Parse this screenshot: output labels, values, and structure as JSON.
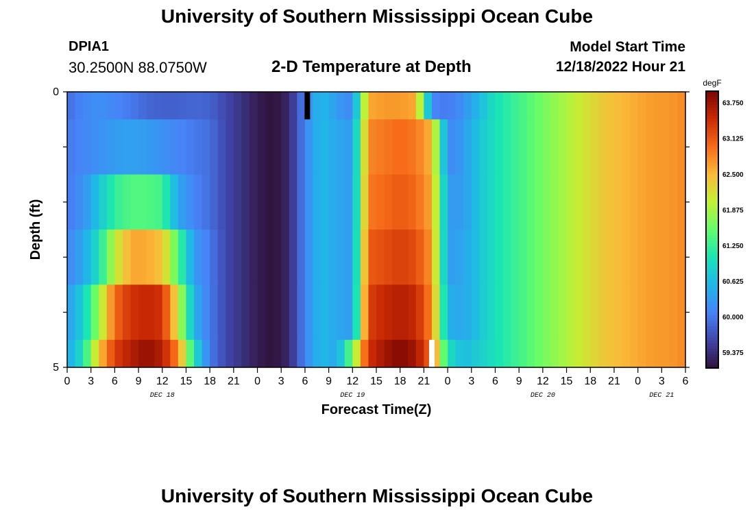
{
  "header": {
    "title": "University of Southern Mississippi Ocean Cube",
    "station": "DPIA1",
    "coordinates": "30.2500N  88.0750W",
    "plot_title": "2-D Temperature at Depth",
    "model_start_label": "Model Start Time",
    "model_start_value": "12/18/2022 Hour 21"
  },
  "footer": {
    "title": "University of Southern Mississippi Ocean Cube"
  },
  "chart_data": {
    "type": "heatmap",
    "xlabel": "Forecast Time(Z)",
    "ylabel": "Depth (ft)",
    "x_ticks": [
      "0",
      "3",
      "6",
      "9",
      "12",
      "15",
      "18",
      "21",
      "0",
      "3",
      "6",
      "9",
      "12",
      "15",
      "18",
      "21",
      "0",
      "3",
      "6",
      "9",
      "12",
      "15",
      "18",
      "21",
      "0",
      "3",
      "6"
    ],
    "x_range_hours": [
      0,
      78
    ],
    "date_labels": [
      {
        "text": "DEC 18",
        "hour": 12
      },
      {
        "text": "DEC 19",
        "hour": 36
      },
      {
        "text": "DEC 20",
        "hour": 60
      },
      {
        "text": "DEC 21",
        "hour": 75
      }
    ],
    "y_ticks": [
      "0",
      "5"
    ],
    "y_range": [
      0,
      5
    ],
    "colorbar": {
      "unit": "degF",
      "min": 59.1,
      "max": 63.95,
      "ticks": [
        "63.750",
        "63.125",
        "62.500",
        "61.875",
        "61.250",
        "60.625",
        "60.000",
        "59.375"
      ],
      "tick_values": [
        63.75,
        63.125,
        62.5,
        61.875,
        61.25,
        60.625,
        60.0,
        59.375
      ]
    },
    "depth_rows": [
      {
        "depth": 0,
        "rows": 1
      },
      {
        "depth": 1,
        "rows": 2
      },
      {
        "depth": 2,
        "rows": 2
      },
      {
        "depth": 3,
        "rows": 2
      },
      {
        "depth": 4,
        "rows": 2
      },
      {
        "depth": 5,
        "rows": 1
      }
    ],
    "temperature_profiles": {
      "hours": [
        0,
        2,
        4,
        6,
        8,
        10,
        12,
        14,
        16,
        18,
        20,
        22,
        24,
        26,
        28,
        30,
        32,
        34,
        36,
        38,
        40,
        42,
        44,
        46,
        48,
        50,
        52,
        54,
        56,
        58,
        60,
        62,
        64,
        66,
        68,
        70,
        72,
        74,
        76,
        78
      ],
      "depth_0": [
        59.9,
        60.1,
        60.2,
        60.1,
        60.0,
        59.85,
        59.8,
        59.8,
        59.85,
        59.8,
        59.6,
        59.4,
        59.2,
        59.1,
        59.3,
        60.1,
        60.6,
        60.3,
        60.1,
        62.6,
        62.7,
        62.7,
        62.6,
        60.1,
        60.0,
        60.2,
        60.6,
        61.0,
        61.2,
        61.4,
        61.6,
        61.8,
        62.0,
        62.2,
        62.4,
        62.5,
        62.6,
        62.7,
        62.7,
        62.8
      ],
      "depth_1": [
        60.0,
        60.1,
        60.2,
        60.3,
        60.35,
        60.3,
        60.2,
        60.1,
        60.0,
        59.9,
        59.6,
        59.4,
        59.2,
        59.1,
        59.3,
        60.1,
        60.6,
        60.4,
        60.3,
        62.8,
        62.9,
        63.0,
        62.9,
        62.5,
        60.1,
        60.3,
        60.7,
        61.0,
        61.2,
        61.4,
        61.6,
        61.8,
        62.0,
        62.2,
        62.4,
        62.5,
        62.6,
        62.7,
        62.7,
        62.8
      ],
      "depth_2": [
        60.0,
        60.2,
        60.7,
        61.2,
        61.4,
        61.4,
        61.3,
        60.4,
        60.1,
        59.9,
        59.6,
        59.4,
        59.2,
        59.1,
        59.3,
        60.1,
        60.6,
        60.4,
        60.3,
        62.9,
        63.0,
        63.1,
        63.0,
        62.6,
        60.3,
        60.3,
        60.7,
        61.0,
        61.2,
        61.4,
        61.6,
        61.8,
        62.0,
        62.2,
        62.4,
        62.5,
        62.6,
        62.7,
        62.7,
        62.8
      ],
      "depth_3": [
        60.1,
        60.4,
        61.0,
        62.0,
        62.6,
        62.6,
        62.4,
        61.4,
        60.3,
        60.0,
        59.6,
        59.4,
        59.2,
        59.1,
        59.3,
        60.1,
        60.6,
        60.4,
        60.3,
        63.1,
        63.2,
        63.3,
        63.2,
        62.7,
        60.3,
        60.4,
        60.7,
        61.0,
        61.2,
        61.4,
        61.6,
        61.8,
        62.0,
        62.2,
        62.4,
        62.5,
        62.6,
        62.7,
        62.7,
        62.8
      ],
      "depth_4": [
        60.3,
        60.8,
        61.8,
        63.0,
        63.4,
        63.5,
        63.4,
        62.1,
        60.5,
        60.0,
        59.6,
        59.4,
        59.2,
        59.1,
        59.3,
        60.1,
        60.6,
        60.4,
        60.3,
        63.3,
        63.5,
        63.6,
        63.5,
        62.8,
        60.5,
        60.4,
        60.7,
        61.0,
        61.2,
        61.4,
        61.6,
        61.8,
        62.0,
        62.2,
        62.4,
        62.5,
        62.6,
        62.7,
        62.7,
        62.8
      ],
      "depth_5": [
        60.4,
        61.0,
        62.4,
        63.3,
        63.6,
        63.8,
        63.6,
        62.8,
        61.0,
        60.0,
        59.6,
        59.4,
        59.2,
        59.1,
        59.3,
        60.1,
        60.6,
        60.4,
        61.6,
        63.4,
        63.7,
        63.9,
        63.7,
        63.0,
        61.0,
        60.6,
        60.8,
        61.0,
        61.2,
        61.4,
        61.6,
        61.8,
        62.0,
        62.2,
        62.4,
        62.5,
        62.6,
        62.7,
        62.7,
        62.8
      ]
    },
    "missing_markers": [
      {
        "hour": 30.3,
        "depth_row": 0,
        "color": "#000000"
      },
      {
        "hour": 46.0,
        "depth_row": 9,
        "color": "#ffffff"
      }
    ]
  }
}
